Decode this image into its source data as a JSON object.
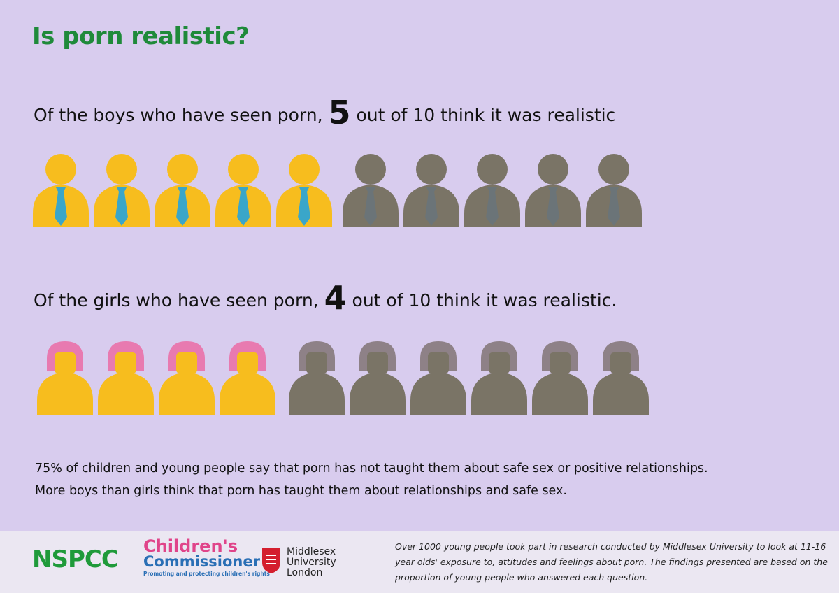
{
  "title": "Is porn realistic?",
  "boys": {
    "prefix": "Of the boys who have seen porn,",
    "count": 5,
    "middle": "out of",
    "total": 10,
    "suffix": "think it was realistic"
  },
  "girls": {
    "prefix": "Of the girls who have seen porn,",
    "count": 4,
    "middle": "out of",
    "total": 10,
    "suffix": "think it was realistic."
  },
  "notes": [
    "75% of children and young people say that porn has not taught them about safe sex or positive relationships.",
    "More boys than girls think that porn has taught them about relationships and safe sex."
  ],
  "footer": {
    "nspcc": "NSPCC",
    "cc_1": "Children's",
    "cc_2": "Commissioner",
    "cc_tag": "Promoting and protecting children's rights",
    "mdx_1": "Middlesex",
    "mdx_2": "University",
    "mdx_3": "London",
    "text": [
      "Over 1000 young people took part in research conducted by Middlesex University to look at 11-16",
      "year olds' exposure to, attitudes and feelings about porn.  The findings presented are based on the",
      "proportion of young people who answered each question."
    ]
  }
}
